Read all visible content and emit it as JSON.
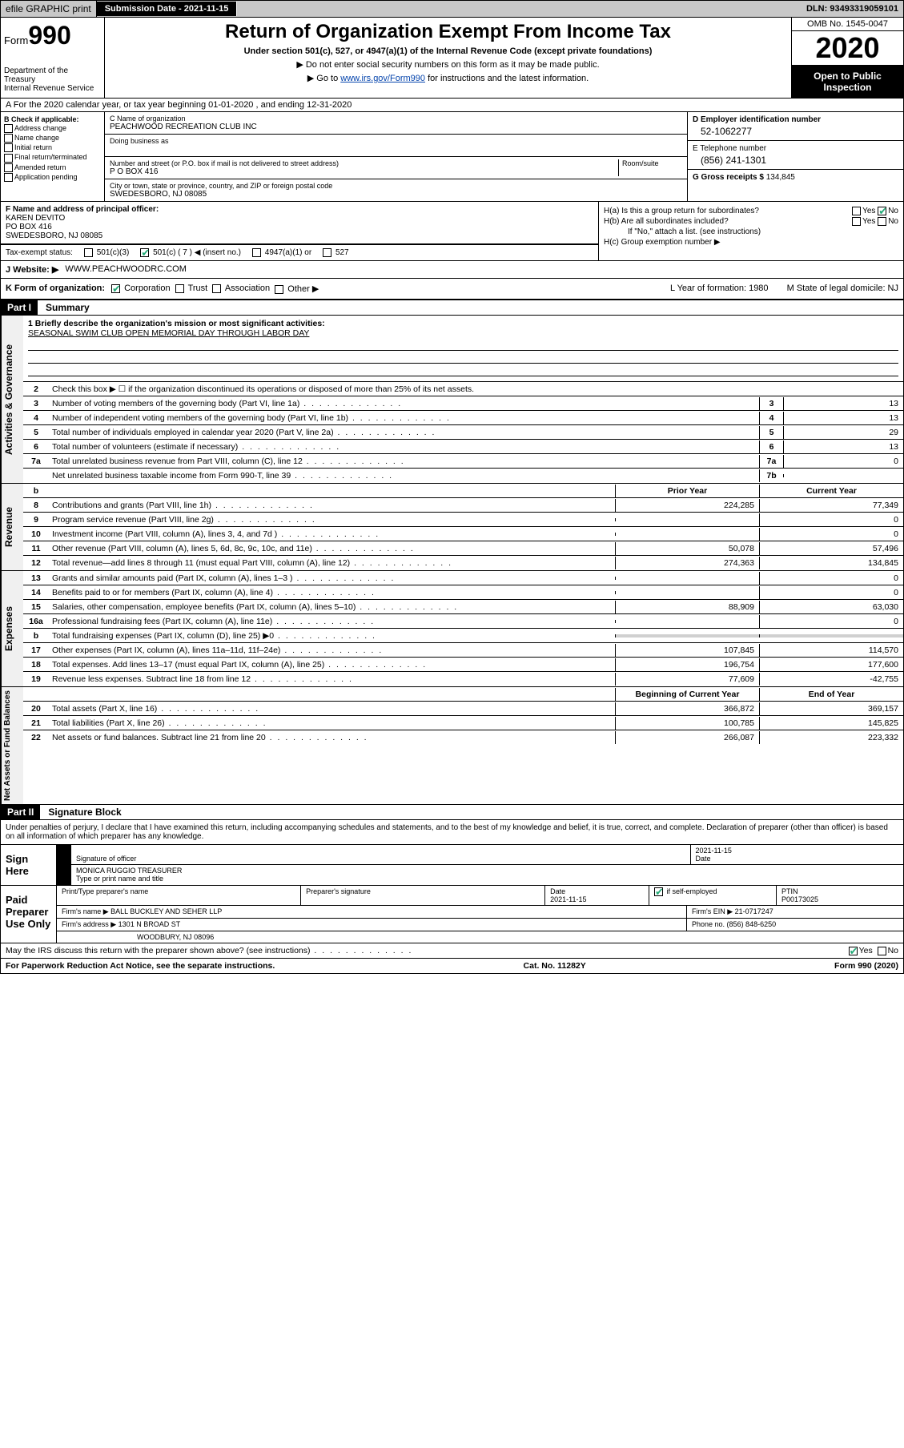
{
  "topbar": {
    "efile": "efile GRAPHIC print",
    "subdate_lbl": "Submission Date - ",
    "subdate": "2021-11-15",
    "dln_lbl": "DLN: ",
    "dln": "93493319059101"
  },
  "header": {
    "form_word": "Form",
    "form_num": "990",
    "dept": "Department of the Treasury\nInternal Revenue Service",
    "title": "Return of Organization Exempt From Income Tax",
    "subtitle": "Under section 501(c), 527, or 4947(a)(1) of the Internal Revenue Code (except private foundations)",
    "note1": "▶ Do not enter social security numbers on this form as it may be made public.",
    "note2_pre": "▶ Go to ",
    "note2_link": "www.irs.gov/Form990",
    "note2_post": " for instructions and the latest information.",
    "omb": "OMB No. 1545-0047",
    "year": "2020",
    "inspect": "Open to Public Inspection"
  },
  "row_a": "A For the 2020 calendar year, or tax year beginning 01-01-2020   , and ending 12-31-2020",
  "b": {
    "hdr": "B Check if applicable:",
    "opts": [
      "Address change",
      "Name change",
      "Initial return",
      "Final return/terminated",
      "Amended return",
      "Application pending"
    ]
  },
  "c": {
    "name_lbl": "C Name of organization",
    "name": "PEACHWOOD RECREATION CLUB INC",
    "dba_lbl": "Doing business as",
    "street_lbl": "Number and street (or P.O. box if mail is not delivered to street address)",
    "room_lbl": "Room/suite",
    "street": "P O BOX 416",
    "city_lbl": "City or town, state or province, country, and ZIP or foreign postal code",
    "city": "SWEDESBORO, NJ  08085"
  },
  "d": {
    "lbl": "D Employer identification number",
    "val": "52-1062277"
  },
  "e": {
    "lbl": "E Telephone number",
    "val": "(856) 241-1301"
  },
  "g": {
    "lbl": "G Gross receipts $ ",
    "val": "134,845"
  },
  "f": {
    "lbl": "F  Name and address of principal officer:",
    "name": "KAREN DEVITO",
    "street": "PO BOX 416",
    "city": "SWEDESBORO, NJ  08085"
  },
  "h": {
    "a": "H(a)  Is this a group return for subordinates?",
    "b": "H(b)  Are all subordinates included?",
    "b_note": "If \"No,\" attach a list. (see instructions)",
    "c": "H(c)  Group exemption number ▶"
  },
  "tax_status": {
    "lbl": "Tax-exempt status:",
    "o1": "501(c)(3)",
    "o2": "501(c) ( 7 ) ◀ (insert no.)",
    "o3": "4947(a)(1) or",
    "o4": "527"
  },
  "j": {
    "lbl": "J  Website: ▶",
    "val": "WWW.PEACHWOODRC.COM"
  },
  "k": {
    "lbl": "K Form of organization:",
    "opts": [
      "Corporation",
      "Trust",
      "Association",
      "Other ▶"
    ],
    "l": "L Year of formation: 1980",
    "m": "M State of legal domicile: NJ"
  },
  "part1": {
    "hdr": "Part I",
    "title": "Summary",
    "q1_lbl": "1  Briefly describe the organization's mission or most significant activities:",
    "q1_val": "SEASONAL SWIM CLUB OPEN MEMORIAL DAY THROUGH LABOR DAY",
    "q2": "Check this box ▶ ☐  if the organization discontinued its operations or disposed of more than 25% of its net assets.",
    "tabs": {
      "gov": "Activities & Governance",
      "rev": "Revenue",
      "exp": "Expenses",
      "net": "Net Assets or Fund Balances"
    },
    "gov_lines": [
      {
        "n": "3",
        "t": "Number of voting members of the governing body (Part VI, line 1a)",
        "box": "3",
        "v": "13"
      },
      {
        "n": "4",
        "t": "Number of independent voting members of the governing body (Part VI, line 1b)",
        "box": "4",
        "v": "13"
      },
      {
        "n": "5",
        "t": "Total number of individuals employed in calendar year 2020 (Part V, line 2a)",
        "box": "5",
        "v": "29"
      },
      {
        "n": "6",
        "t": "Total number of volunteers (estimate if necessary)",
        "box": "6",
        "v": "13"
      },
      {
        "n": "7a",
        "t": "Total unrelated business revenue from Part VIII, column (C), line 12",
        "box": "7a",
        "v": "0"
      },
      {
        "n": "",
        "t": "Net unrelated business taxable income from Form 990-T, line 39",
        "box": "7b",
        "v": ""
      }
    ],
    "col_hdrs": {
      "b": "b",
      "prior": "Prior Year",
      "current": "Current Year"
    },
    "rev_lines": [
      {
        "n": "8",
        "t": "Contributions and grants (Part VIII, line 1h)",
        "p": "224,285",
        "c": "77,349"
      },
      {
        "n": "9",
        "t": "Program service revenue (Part VIII, line 2g)",
        "p": "",
        "c": "0"
      },
      {
        "n": "10",
        "t": "Investment income (Part VIII, column (A), lines 3, 4, and 7d )",
        "p": "",
        "c": "0"
      },
      {
        "n": "11",
        "t": "Other revenue (Part VIII, column (A), lines 5, 6d, 8c, 9c, 10c, and 11e)",
        "p": "50,078",
        "c": "57,496"
      },
      {
        "n": "12",
        "t": "Total revenue—add lines 8 through 11 (must equal Part VIII, column (A), line 12)",
        "p": "274,363",
        "c": "134,845"
      }
    ],
    "exp_lines": [
      {
        "n": "13",
        "t": "Grants and similar amounts paid (Part IX, column (A), lines 1–3 )",
        "p": "",
        "c": "0"
      },
      {
        "n": "14",
        "t": "Benefits paid to or for members (Part IX, column (A), line 4)",
        "p": "",
        "c": "0"
      },
      {
        "n": "15",
        "t": "Salaries, other compensation, employee benefits (Part IX, column (A), lines 5–10)",
        "p": "88,909",
        "c": "63,030"
      },
      {
        "n": "16a",
        "t": "Professional fundraising fees (Part IX, column (A), line 11e)",
        "p": "",
        "c": "0"
      },
      {
        "n": "b",
        "t": "Total fundraising expenses (Part IX, column (D), line 25) ▶0",
        "p": "shaded",
        "c": "shaded"
      },
      {
        "n": "17",
        "t": "Other expenses (Part IX, column (A), lines 11a–11d, 11f–24e)",
        "p": "107,845",
        "c": "114,570"
      },
      {
        "n": "18",
        "t": "Total expenses. Add lines 13–17 (must equal Part IX, column (A), line 25)",
        "p": "196,754",
        "c": "177,600"
      },
      {
        "n": "19",
        "t": "Revenue less expenses. Subtract line 18 from line 12",
        "p": "77,609",
        "c": "-42,755"
      }
    ],
    "net_hdrs": {
      "begin": "Beginning of Current Year",
      "end": "End of Year"
    },
    "net_lines": [
      {
        "n": "20",
        "t": "Total assets (Part X, line 16)",
        "p": "366,872",
        "c": "369,157"
      },
      {
        "n": "21",
        "t": "Total liabilities (Part X, line 26)",
        "p": "100,785",
        "c": "145,825"
      },
      {
        "n": "22",
        "t": "Net assets or fund balances. Subtract line 21 from line 20",
        "p": "266,087",
        "c": "223,332"
      }
    ]
  },
  "part2": {
    "hdr": "Part II",
    "title": "Signature Block",
    "perjury": "Under penalties of perjury, I declare that I have examined this return, including accompanying schedules and statements, and to the best of my knowledge and belief, it is true, correct, and complete. Declaration of preparer (other than officer) is based on all information of which preparer has any knowledge.",
    "sign_here": "Sign Here",
    "sig_officer": "Signature of officer",
    "sig_date": "2021-11-15",
    "date_lbl": "Date",
    "officer_name": "MONICA RUGGIO  TREASURER",
    "type_name": "Type or print name and title",
    "paid": "Paid Preparer Use Only",
    "prep_name_lbl": "Print/Type preparer's name",
    "prep_sig_lbl": "Preparer's signature",
    "prep_date": "2021-11-15",
    "self_emp": "Check ☑ if self-employed",
    "ptin_lbl": "PTIN",
    "ptin": "P00173025",
    "firm_name_lbl": "Firm's name    ▶",
    "firm_name": "BALL BUCKLEY AND SEHER LLP",
    "firm_ein_lbl": "Firm's EIN ▶",
    "firm_ein": "21-0717247",
    "firm_addr_lbl": "Firm's address ▶",
    "firm_addr1": "1301 N BROAD ST",
    "firm_addr2": "WOODBURY, NJ  08096",
    "phone_lbl": "Phone no. ",
    "phone": "(856) 848-6250",
    "discuss": "May the IRS discuss this return with the preparer shown above? (see instructions)"
  },
  "footer": {
    "left": "For Paperwork Reduction Act Notice, see the separate instructions.",
    "mid": "Cat. No. 11282Y",
    "right": "Form 990 (2020)"
  }
}
